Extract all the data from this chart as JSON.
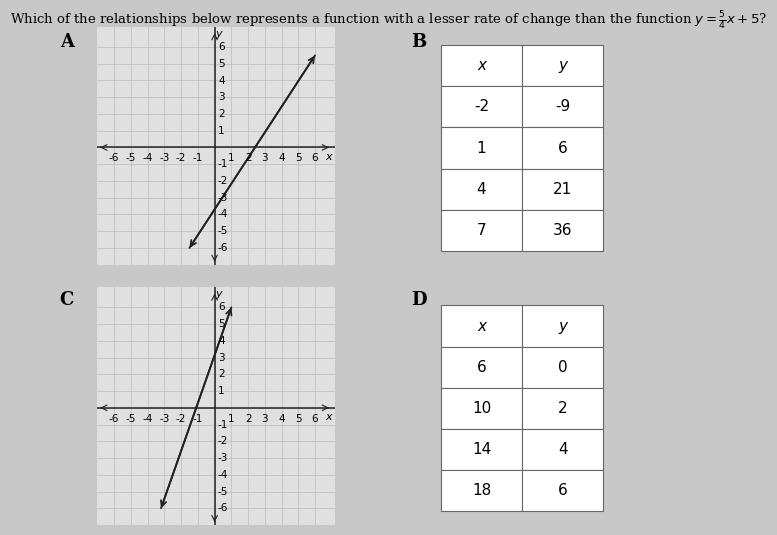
{
  "title_part1": "Which of the relationships below represents a function with a lesser rate of change than the function ",
  "title_math": "y = \\frac{5}{4}x + 5?",
  "bg_color": "#c8c8c8",
  "panel_color": "#e0e0e0",
  "A_label": "A",
  "A_line_pts": [
    [
      -1.5,
      -6.0
    ],
    [
      6.0,
      5.5
    ]
  ],
  "C_label": "C",
  "C_line_pts": [
    [
      -3.2,
      -6.0
    ],
    [
      1.0,
      6.0
    ]
  ],
  "B_label": "B",
  "B_table_x": [
    "-2",
    "1",
    "4",
    "7"
  ],
  "B_table_y": [
    "-9",
    "6",
    "21",
    "36"
  ],
  "D_label": "D",
  "D_table_x": [
    "6",
    "10",
    "14",
    "18"
  ],
  "D_table_y": [
    "0",
    "2",
    "4",
    "6"
  ],
  "axis_color": "#222222",
  "grid_color": "#bbbbbb",
  "line_color": "#222222",
  "tick_fontsize": 7.5,
  "table_fontsize": 11,
  "label_fontsize": 13
}
